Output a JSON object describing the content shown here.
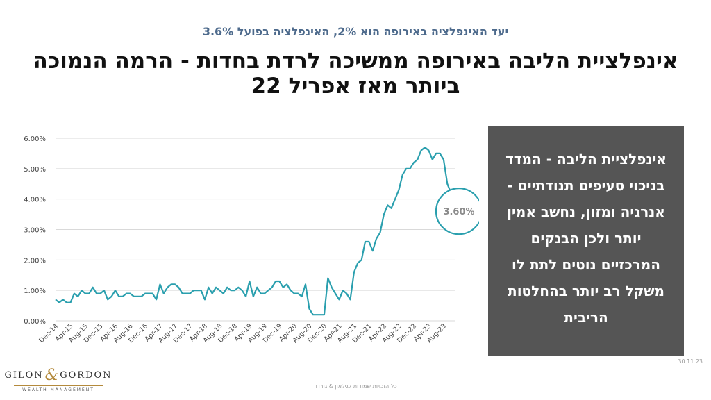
{
  "header": {
    "subtitle": "יעד האינפלציה באירופה הוא 2%, האינפלציה בפועל 3.6%",
    "title": "אינפלציית הליבה באירופה ממשיכה לרדת בחדות - הרמה הנמוכה ביותר מאז אפריל 22"
  },
  "infobox": {
    "text": "אינפלציית הליבה - המדד בניכוי סעיפים תנודתיים - אנרגיה ומזון, נחשב אמין יותר ולכן הבנקים המרכזיים נוטים לתת לו משקל רב יותר בהחלטות הריבית"
  },
  "footer": {
    "date": "30.11.23",
    "copyright": "כל הזכויות שמורות לגילאון & גורדון",
    "logo_left": "GILON",
    "logo_amp": "&",
    "logo_right": "GORDON",
    "logo_sub": "WEALTH MANAGEMENT"
  },
  "colors": {
    "line": "#2a9fae",
    "grid": "#d9d9d9",
    "infobox_bg": "#555555",
    "subtitle": "#4d6a8c",
    "logo_gold": "#b48a3c"
  },
  "chart_data": {
    "type": "line",
    "y_ticks": [
      "0.00%",
      "1.00%",
      "2.00%",
      "3.00%",
      "4.00%",
      "5.00%",
      "6.00%"
    ],
    "x_ticks": [
      "Dec-14",
      "Apr-15",
      "Aug-15",
      "Dec-15",
      "Apr-16",
      "Aug-16",
      "Dec-16",
      "Apr-17",
      "Aug-17",
      "Dec-17",
      "Apr-18",
      "Aug-18",
      "Dec-18",
      "Apr-19",
      "Aug-19",
      "Dec-19",
      "Apr-20",
      "Aug-20",
      "Dec-20",
      "Apr-21",
      "Aug-21",
      "Dec-21",
      "Apr-22",
      "Aug-22",
      "Dec-22",
      "Apr-23",
      "Aug-23"
    ],
    "ylim": [
      0,
      6
    ],
    "grid": "horizontal",
    "start": "Dec-14",
    "frequency": "monthly",
    "values": [
      0.7,
      0.6,
      0.7,
      0.6,
      0.6,
      0.9,
      0.8,
      1.0,
      0.9,
      0.9,
      1.1,
      0.9,
      0.9,
      1.0,
      0.7,
      0.8,
      1.0,
      0.8,
      0.8,
      0.9,
      0.9,
      0.8,
      0.8,
      0.8,
      0.9,
      0.9,
      0.9,
      0.7,
      1.2,
      0.9,
      1.1,
      1.2,
      1.2,
      1.1,
      0.9,
      0.9,
      0.9,
      1.0,
      1.0,
      1.0,
      0.7,
      1.1,
      0.9,
      1.1,
      1.0,
      0.9,
      1.1,
      1.0,
      1.0,
      1.1,
      1.0,
      0.8,
      1.3,
      0.8,
      1.1,
      0.9,
      0.9,
      1.0,
      1.1,
      1.3,
      1.3,
      1.1,
      1.2,
      1.0,
      0.9,
      0.9,
      0.8,
      1.2,
      0.4,
      0.2,
      0.2,
      0.2,
      0.2,
      1.4,
      1.1,
      0.9,
      0.7,
      1.0,
      0.9,
      0.7,
      1.6,
      1.9,
      2.0,
      2.6,
      2.6,
      2.3,
      2.7,
      2.9,
      3.5,
      3.8,
      3.7,
      4.0,
      4.3,
      4.8,
      5.0,
      5.0,
      5.2,
      5.3,
      5.6,
      5.7,
      5.6,
      5.3,
      5.5,
      5.5,
      5.3,
      4.5,
      4.2,
      3.6
    ],
    "annotation": "3.60%"
  }
}
